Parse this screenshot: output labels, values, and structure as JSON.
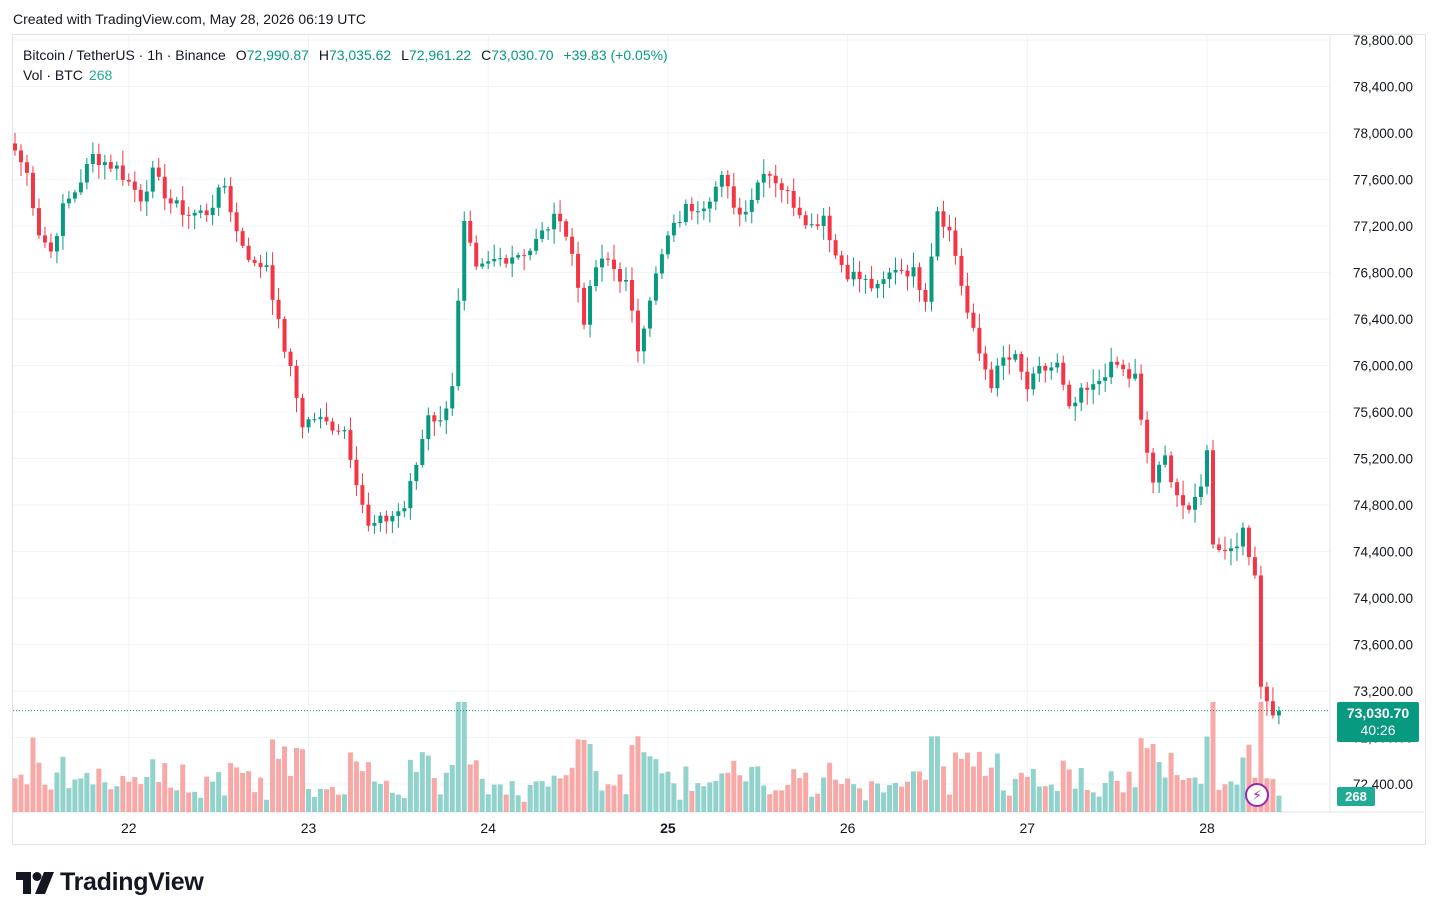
{
  "header": {
    "created_text": "Created with TradingView.com, May 28, 2026 06:19 UTC"
  },
  "legend": {
    "symbol": "Bitcoin / TetherUS · 1h · Binance",
    "open_label": "O",
    "open": "72,990.87",
    "high_label": "H",
    "high": "73,035.62",
    "low_label": "L",
    "low": "72,961.22",
    "close_label": "C",
    "close": "73,030.70",
    "change": "+39.83 (+0.05%)",
    "vol_label": "Vol · BTC",
    "vol_value": "268"
  },
  "price_tag": {
    "price": "73,030.70",
    "countdown": "40:26"
  },
  "volume_tag": "268",
  "brand": {
    "name": "TradingView"
  },
  "colors": {
    "up": "#089981",
    "down": "#f23645",
    "vol_up": "#92d2cc",
    "vol_down": "#f7a9a7",
    "grid": "#f0f3fa"
  },
  "chart_data": {
    "type": "candlestick",
    "title": "Bitcoin / TetherUS · 1h · Binance",
    "interval": "1h",
    "grid": true,
    "y_ticks": [
      "78,800.00",
      "78,400.00",
      "78,000.00",
      "77,600.00",
      "77,200.00",
      "76,800.00",
      "76,400.00",
      "76,000.00",
      "75,600.00",
      "75,200.00",
      "74,800.00",
      "74,400.00",
      "74,000.00",
      "73,600.00",
      "73,200.00",
      "72,800.00",
      "72,400.00"
    ],
    "y_range": [
      72200,
      78950
    ],
    "x_ticks": [
      {
        "label": "22",
        "bar": 19,
        "bold": false
      },
      {
        "label": "23",
        "bar": 49,
        "bold": false
      },
      {
        "label": "24",
        "bar": 79,
        "bold": false
      },
      {
        "label": "25",
        "bar": 109,
        "bold": true
      },
      {
        "label": "26",
        "bar": 139,
        "bold": false
      },
      {
        "label": "27",
        "bar": 169,
        "bold": false
      },
      {
        "label": "28",
        "bar": 199,
        "bold": false
      }
    ],
    "last_price": 73030.7,
    "close_anchors": [
      [
        0,
        77850
      ],
      [
        2,
        77650
      ],
      [
        4,
        77150
      ],
      [
        6,
        76980
      ],
      [
        8,
        77350
      ],
      [
        10,
        77500
      ],
      [
        13,
        77800
      ],
      [
        17,
        77700
      ],
      [
        21,
        77450
      ],
      [
        23,
        77650
      ],
      [
        26,
        77400
      ],
      [
        29,
        77300
      ],
      [
        32,
        77320
      ],
      [
        35,
        77550
      ],
      [
        37,
        77150
      ],
      [
        40,
        76850
      ],
      [
        42,
        76880
      ],
      [
        44,
        76350
      ],
      [
        46,
        75950
      ],
      [
        48,
        75500
      ],
      [
        50,
        75550
      ],
      [
        52,
        75500
      ],
      [
        55,
        75450
      ],
      [
        59,
        74600
      ],
      [
        62,
        74680
      ],
      [
        65,
        74780
      ],
      [
        67,
        75150
      ],
      [
        69,
        75600
      ],
      [
        71,
        75500
      ],
      [
        73,
        75850
      ],
      [
        75,
        77200
      ],
      [
        77,
        76800
      ],
      [
        80,
        76900
      ],
      [
        83,
        76950
      ],
      [
        86,
        77000
      ],
      [
        89,
        77200
      ],
      [
        91,
        77300
      ],
      [
        93,
        76950
      ],
      [
        95,
        76400
      ],
      [
        97,
        76850
      ],
      [
        99,
        76900
      ],
      [
        102,
        76700
      ],
      [
        104,
        76150
      ],
      [
        106,
        76600
      ],
      [
        109,
        77100
      ],
      [
        112,
        77350
      ],
      [
        115,
        77400
      ],
      [
        118,
        77600
      ],
      [
        121,
        77300
      ],
      [
        123,
        77450
      ],
      [
        125,
        77700
      ],
      [
        127,
        77600
      ],
      [
        130,
        77400
      ],
      [
        133,
        77200
      ],
      [
        135,
        77300
      ],
      [
        137,
        76950
      ],
      [
        139,
        76800
      ],
      [
        141,
        76750
      ],
      [
        144,
        76650
      ],
      [
        147,
        76850
      ],
      [
        150,
        76800
      ],
      [
        152,
        76600
      ],
      [
        154,
        77350
      ],
      [
        156,
        77150
      ],
      [
        157,
        76950
      ],
      [
        159,
        76450
      ],
      [
        161,
        76100
      ],
      [
        163,
        75850
      ],
      [
        165,
        76050
      ],
      [
        167,
        76050
      ],
      [
        169,
        75800
      ],
      [
        171,
        75950
      ],
      [
        174,
        76000
      ],
      [
        176,
        75600
      ],
      [
        178,
        75750
      ],
      [
        180,
        75800
      ],
      [
        182,
        75950
      ],
      [
        184,
        76000
      ],
      [
        186,
        75900
      ],
      [
        187,
        75900
      ],
      [
        188,
        75500
      ],
      [
        190,
        75000
      ],
      [
        192,
        75200
      ],
      [
        194,
        74900
      ],
      [
        196,
        74700
      ],
      [
        198,
        75000
      ],
      [
        199,
        75250
      ],
      [
        200,
        74500
      ],
      [
        202,
        74400
      ],
      [
        203,
        74450
      ],
      [
        205,
        74550
      ],
      [
        206,
        74350
      ],
      [
        207,
        74250
      ],
      [
        208,
        73250
      ],
      [
        209,
        73150
      ],
      [
        210,
        72990
      ],
      [
        211,
        73030
      ]
    ],
    "volume_range": [
      0,
      1000
    ],
    "last_volume": 268
  }
}
